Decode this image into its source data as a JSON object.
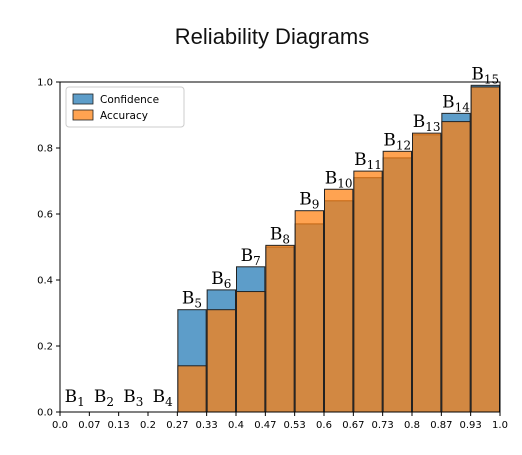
{
  "chart_data": {
    "type": "bar",
    "title": "Reliability Diagrams",
    "xlabel": "",
    "ylabel": "",
    "xlim": [
      0.0,
      1.0
    ],
    "ylim": [
      0.0,
      1.0
    ],
    "x_tick_labels": [
      "0.0",
      "0.07",
      "0.13",
      "0.2",
      "0.27",
      "0.33",
      "0.4",
      "0.47",
      "0.53",
      "0.6",
      "0.67",
      "0.73",
      "0.8",
      "0.87",
      "0.93",
      "1.0"
    ],
    "y_tick_labels": [
      "0.0",
      "0.2",
      "0.4",
      "0.6",
      "0.8",
      "1.0"
    ],
    "bin_edges": [
      0.0,
      0.0667,
      0.1333,
      0.2,
      0.2667,
      0.3333,
      0.4,
      0.4667,
      0.5333,
      0.6,
      0.6667,
      0.7333,
      0.8,
      0.8667,
      0.9333,
      1.0
    ],
    "series": [
      {
        "name": "Confidence",
        "color": "#1f77b4",
        "values": [
          0,
          0,
          0,
          0,
          0.31,
          0.37,
          0.44,
          0.5,
          0.57,
          0.64,
          0.71,
          0.77,
          0.84,
          0.905,
          0.99
        ]
      },
      {
        "name": "Accuracy",
        "color": "#ff7f0e",
        "values": [
          0,
          0,
          0,
          0,
          0.14,
          0.31,
          0.365,
          0.505,
          0.61,
          0.675,
          0.73,
          0.79,
          0.845,
          0.88,
          0.985
        ]
      }
    ],
    "bin_labels": [
      {
        "base": "B",
        "sub": "1"
      },
      {
        "base": "B",
        "sub": "2"
      },
      {
        "base": "B",
        "sub": "3"
      },
      {
        "base": "B",
        "sub": "4"
      },
      {
        "base": "B",
        "sub": "5"
      },
      {
        "base": "B",
        "sub": "6"
      },
      {
        "base": "B",
        "sub": "7"
      },
      {
        "base": "B",
        "sub": "8"
      },
      {
        "base": "B",
        "sub": "9"
      },
      {
        "base": "B",
        "sub": "10"
      },
      {
        "base": "B",
        "sub": "11"
      },
      {
        "base": "B",
        "sub": "12"
      },
      {
        "base": "B",
        "sub": "13"
      },
      {
        "base": "B",
        "sub": "14"
      },
      {
        "base": "B",
        "sub": "15"
      }
    ],
    "legend": {
      "placement": "top-left",
      "entries": [
        "Confidence",
        "Accuracy"
      ]
    },
    "grid": false,
    "bar_edge_color": "#222222"
  }
}
